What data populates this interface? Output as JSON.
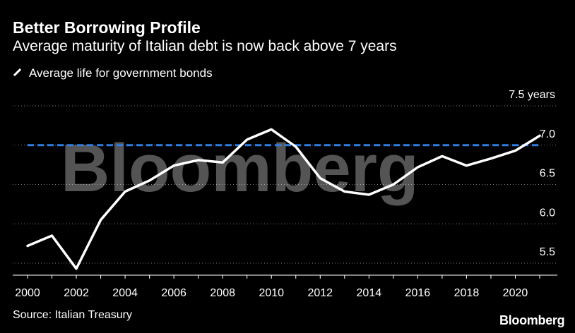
{
  "header": {
    "title": "Better Borrowing Profile",
    "subtitle": "Average maturity of Italian debt is now back above 7 years"
  },
  "footer": {
    "source": "Source: Italian Treasury",
    "logo": "Bloomberg"
  },
  "watermark": "Bloomberg",
  "colors": {
    "background": "#000000",
    "series": "#ffffff",
    "reference_line": "#2f7de1",
    "grid": "#7a7a7a"
  },
  "chart_data": {
    "type": "line",
    "title": "Better Borrowing Profile",
    "subtitle": "Average maturity of Italian debt is now back above 7 years",
    "xlabel": "",
    "ylabel": "",
    "x": [
      2000,
      2001,
      2002,
      2003,
      2004,
      2005,
      2006,
      2007,
      2008,
      2009,
      2010,
      2011,
      2012,
      2013,
      2014,
      2015,
      2016,
      2017,
      2018,
      2019,
      2020,
      2021
    ],
    "series": [
      {
        "name": "Average life for government bonds",
        "values": [
          5.72,
          5.85,
          5.43,
          6.05,
          6.41,
          6.55,
          6.74,
          6.81,
          6.78,
          7.07,
          7.2,
          6.98,
          6.58,
          6.41,
          6.37,
          6.5,
          6.72,
          6.86,
          6.74,
          6.83,
          6.93,
          7.12
        ]
      }
    ],
    "reference_line": {
      "y": 7.0,
      "style": "dashed"
    },
    "xlim": [
      2000,
      2021
    ],
    "ylim": [
      5.4,
      7.5
    ],
    "x_ticks": [
      "2000",
      "2002",
      "2004",
      "2006",
      "2008",
      "2010",
      "2012",
      "2014",
      "2016",
      "2018",
      "2020"
    ],
    "y_ticks": [
      {
        "value": 7.5,
        "label": "7.5 years"
      },
      {
        "value": 7.0,
        "label": "7.0"
      },
      {
        "value": 6.5,
        "label": "6.5"
      },
      {
        "value": 6.0,
        "label": "6.0"
      },
      {
        "value": 5.5,
        "label": "5.5"
      }
    ],
    "grid": "horizontal dotted",
    "y_axis_position": "right",
    "legend_position": "top-left"
  }
}
